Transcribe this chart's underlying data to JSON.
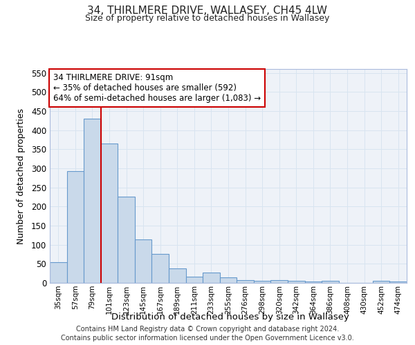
{
  "title": "34, THIRLMERE DRIVE, WALLASEY, CH45 4LW",
  "subtitle": "Size of property relative to detached houses in Wallasey",
  "xlabel": "Distribution of detached houses by size in Wallasey",
  "ylabel": "Number of detached properties",
  "footer_line1": "Contains HM Land Registry data © Crown copyright and database right 2024.",
  "footer_line2": "Contains public sector information licensed under the Open Government Licence v3.0.",
  "categories": [
    "35sqm",
    "57sqm",
    "79sqm",
    "101sqm",
    "123sqm",
    "145sqm",
    "167sqm",
    "189sqm",
    "211sqm",
    "233sqm",
    "255sqm",
    "276sqm",
    "298sqm",
    "320sqm",
    "342sqm",
    "364sqm",
    "386sqm",
    "408sqm",
    "430sqm",
    "452sqm",
    "474sqm"
  ],
  "values": [
    55,
    293,
    430,
    365,
    225,
    113,
    75,
    38,
    17,
    27,
    15,
    7,
    5,
    8,
    5,
    3,
    6,
    0,
    0,
    5,
    3
  ],
  "bar_color": "#c9d9ea",
  "bar_edge_color": "#6699cc",
  "grid_color": "#d8e4f0",
  "background_color": "#ffffff",
  "plot_bg_color": "#eef2f8",
  "vline_x": 2.5,
  "vline_color": "#cc0000",
  "annotation_line1": "34 THIRLMERE DRIVE: 91sqm",
  "annotation_line2": "← 35% of detached houses are smaller (592)",
  "annotation_line3": "64% of semi-detached houses are larger (1,083) →",
  "annotation_box_color": "#ffffff",
  "annotation_box_edge_color": "#cc0000",
  "ylim": [
    0,
    560
  ],
  "yticks": [
    0,
    50,
    100,
    150,
    200,
    250,
    300,
    350,
    400,
    450,
    500,
    550
  ]
}
